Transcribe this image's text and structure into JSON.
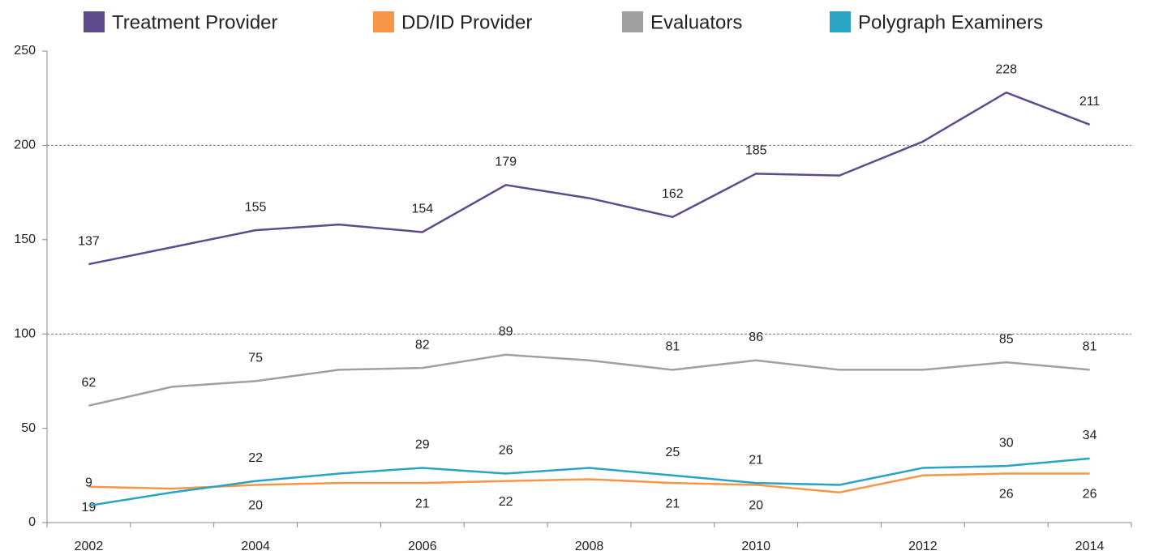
{
  "chart_data": {
    "type": "line",
    "categories": [
      "2002",
      null,
      "2004",
      null,
      "2006",
      null,
      "2008",
      null,
      "2010",
      null,
      "2012",
      null,
      "2014"
    ],
    "series": [
      {
        "name": "Treatment Provider",
        "color": "#5f4a8b",
        "label_position": "above",
        "values": [
          137,
          146,
          155,
          158,
          154,
          179,
          172,
          162,
          185,
          184,
          202,
          228,
          211
        ],
        "value_labels": [
          "137",
          null,
          "155",
          null,
          "154",
          "179",
          null,
          "162",
          "185",
          null,
          null,
          "228",
          "211"
        ]
      },
      {
        "name": "DD/ID Provider",
        "color": "#f79646",
        "label_position": "below",
        "values": [
          19,
          18,
          20,
          21,
          21,
          22,
          23,
          21,
          20,
          16,
          25,
          26,
          26
        ],
        "value_labels": [
          "19",
          null,
          "20",
          null,
          "21",
          "22",
          null,
          "21",
          "20",
          null,
          null,
          "26",
          "26"
        ]
      },
      {
        "name": "Evaluators",
        "color": "#a0a0a0",
        "label_position": "above",
        "values": [
          62,
          72,
          75,
          81,
          82,
          89,
          86,
          81,
          86,
          81,
          81,
          85,
          81
        ],
        "value_labels": [
          "62",
          null,
          "75",
          null,
          "82",
          "89",
          null,
          "81",
          "86",
          null,
          null,
          "85",
          "81"
        ]
      },
      {
        "name": "Polygraph Examiners",
        "color": "#2aa3c4",
        "label_position": "above",
        "values": [
          9,
          16,
          22,
          26,
          29,
          26,
          29,
          25,
          21,
          20,
          29,
          30,
          34
        ],
        "value_labels": [
          "9",
          null,
          "22",
          null,
          "29",
          "26",
          null,
          "25",
          "21",
          null,
          null,
          "30",
          "34"
        ]
      }
    ],
    "ylim": [
      0,
      250
    ],
    "yticks": [
      0,
      50,
      100,
      150,
      200,
      250
    ],
    "gridlines": [
      100,
      200
    ],
    "legend": "top"
  }
}
